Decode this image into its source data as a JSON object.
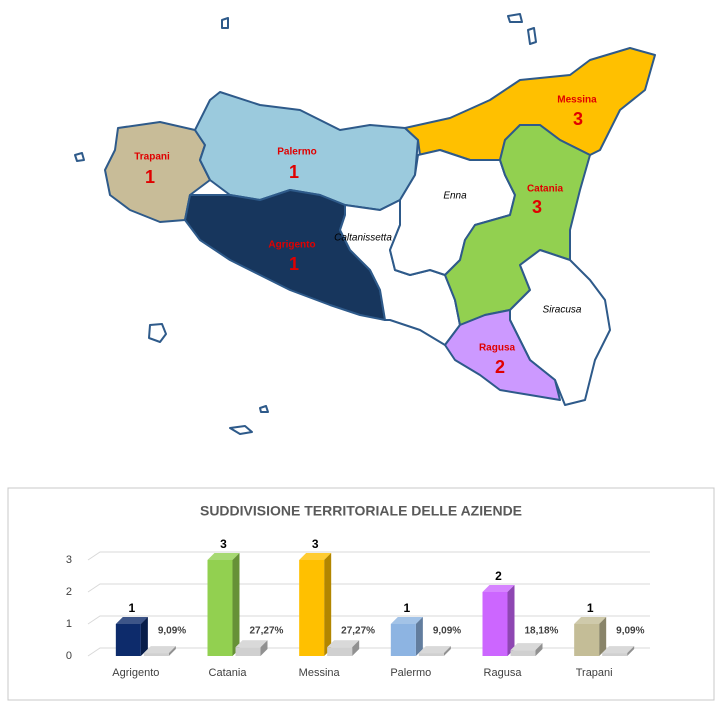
{
  "map": {
    "regions": [
      {
        "name": "Trapani",
        "count": "1"
      },
      {
        "name": "Palermo",
        "count": "1"
      },
      {
        "name": "Agrigento",
        "count": "1"
      },
      {
        "name": "Messina",
        "count": "3"
      },
      {
        "name": "Catania",
        "count": "3"
      },
      {
        "name": "Ragusa",
        "count": "2"
      },
      {
        "name": "Enna"
      },
      {
        "name": "Caltanissetta"
      },
      {
        "name": "Siracusa"
      }
    ]
  },
  "chart_data": {
    "type": "bar",
    "title": "SUDDIVISIONE TERRITORIALE DELLE AZIENDE",
    "categories": [
      "Agrigento",
      "Catania",
      "Messina",
      "Palermo",
      "Ragusa",
      "Trapani"
    ],
    "series": [
      {
        "colors": [
          "#0d2b6b",
          "#92d050",
          "#ffc000",
          "#8db4e2",
          "#cc66ff",
          "#c4bd97"
        ],
        "values": [
          1,
          3,
          3,
          1,
          2,
          1
        ]
      },
      {
        "color": "#d0d0d0",
        "values": [
          0.0909,
          0.2727,
          0.2727,
          0.0909,
          0.1818,
          0.0909
        ],
        "value_labels": [
          "9,09%",
          "27,27%",
          "27,27%",
          "9,09%",
          "18,18%",
          "9,09%"
        ]
      }
    ],
    "ylim": [
      0,
      3
    ],
    "yticks": [
      0,
      1,
      2,
      3
    ],
    "grid": true
  }
}
